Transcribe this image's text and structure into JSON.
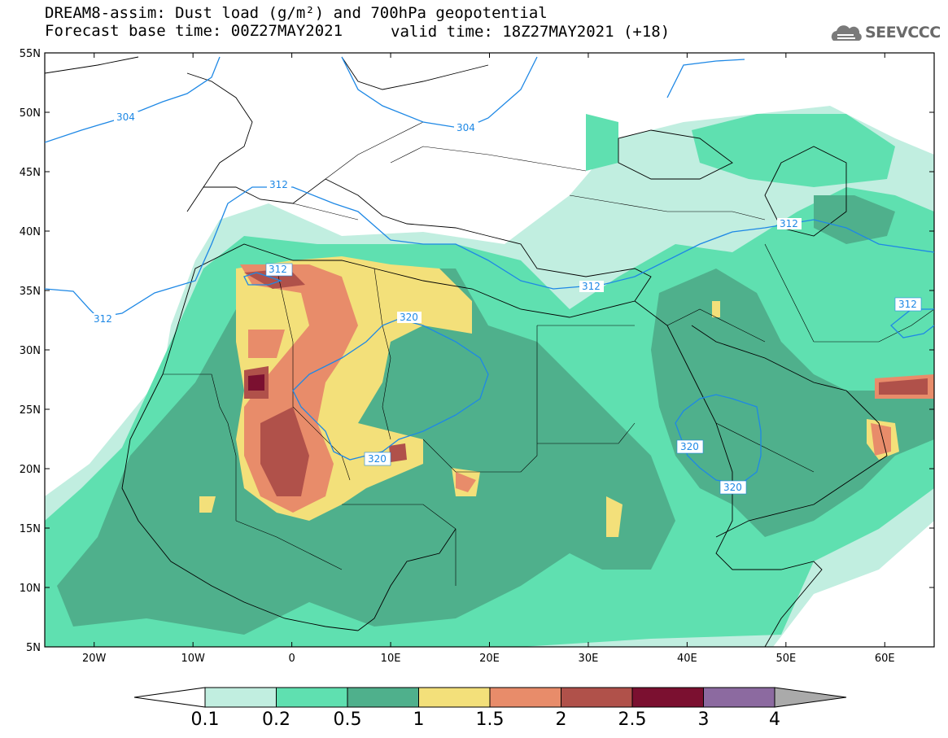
{
  "title": {
    "line1": "DREAM8-assim: Dust load (g/m²) and 700hPa geopotential",
    "line2": "Forecast base time: 00Z27MAY2021",
    "valid": "valid time: 18Z27MAY2021 (+18)"
  },
  "logo": {
    "icon": "cloud-icon",
    "text": "SEEVCCC"
  },
  "axes": {
    "lat_labels": [
      "55N",
      "50N",
      "45N",
      "40N",
      "35N",
      "30N",
      "25N",
      "20N",
      "15N",
      "10N",
      "5N"
    ],
    "lon_labels": [
      "20W",
      "10W",
      "0",
      "10E",
      "20E",
      "30E",
      "40E",
      "50E",
      "60E"
    ],
    "lat_range": [
      5,
      55
    ],
    "lon_range": [
      -25,
      65
    ]
  },
  "contour_labels": [
    "304",
    "304",
    "312",
    "312",
    "312",
    "312",
    "312",
    "312",
    "320",
    "320",
    "320",
    "320"
  ],
  "colorbar": {
    "labels": [
      "0.1",
      "0.2",
      "0.5",
      "1",
      "1.5",
      "2",
      "2.5",
      "3",
      "4"
    ],
    "colors": [
      "#c1eee0",
      "#5fe0b0",
      "#4fb08c",
      "#f3e07a",
      "#e88c6a",
      "#b0514a",
      "#7b1030",
      "#8c6aa0"
    ]
  }
}
